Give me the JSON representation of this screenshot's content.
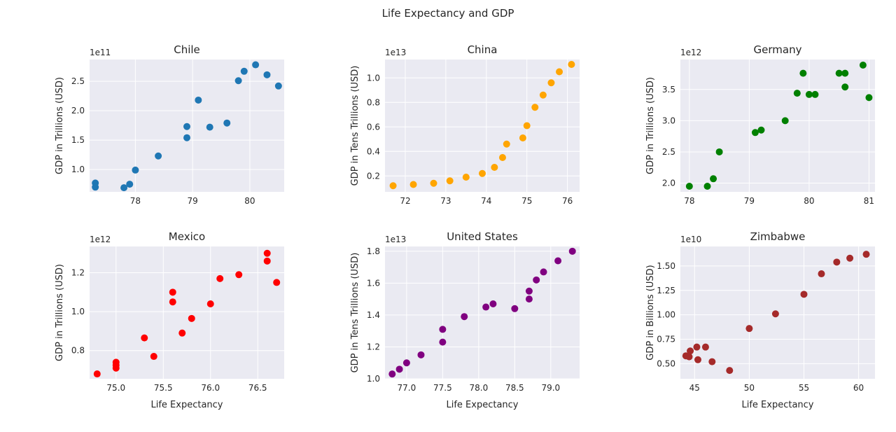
{
  "figure": {
    "suptitle": "Life Expectancy and GDP"
  },
  "chart_data": [
    {
      "type": "scatter",
      "title": "Chile",
      "xlabel": "",
      "ylabel": "GDP in Trillions (USD)",
      "offset_label": "1e11",
      "color": "#1f77b4",
      "xlim": [
        77.2,
        80.6
      ],
      "ylim": [
        0.62,
        2.87
      ],
      "xticks": [
        78,
        79,
        80
      ],
      "xtick_labels": [
        "78",
        "79",
        "80"
      ],
      "yticks": [
        1.0,
        1.5,
        2.0,
        2.5
      ],
      "ytick_labels": [
        "1.0",
        "1.5",
        "2.0",
        "2.5"
      ],
      "grid": true,
      "points": [
        {
          "x": 77.3,
          "y": 0.77
        },
        {
          "x": 77.3,
          "y": 0.7
        },
        {
          "x": 77.8,
          "y": 0.69
        },
        {
          "x": 77.9,
          "y": 0.75
        },
        {
          "x": 78.0,
          "y": 0.99
        },
        {
          "x": 78.4,
          "y": 1.23
        },
        {
          "x": 78.9,
          "y": 1.54
        },
        {
          "x": 78.9,
          "y": 1.73
        },
        {
          "x": 79.1,
          "y": 2.18
        },
        {
          "x": 79.3,
          "y": 1.72
        },
        {
          "x": 79.6,
          "y": 1.79
        },
        {
          "x": 79.8,
          "y": 2.51
        },
        {
          "x": 79.9,
          "y": 2.67
        },
        {
          "x": 80.1,
          "y": 2.78
        },
        {
          "x": 80.3,
          "y": 2.61
        },
        {
          "x": 80.5,
          "y": 2.42
        }
      ]
    },
    {
      "type": "scatter",
      "title": "China",
      "xlabel": "",
      "ylabel": "GDP in Tens Trillions (USD)",
      "offset_label": "1e13",
      "color": "#ffa500",
      "xlim": [
        71.5,
        76.3
      ],
      "ylim": [
        0.07,
        1.15
      ],
      "xticks": [
        72,
        73,
        74,
        75,
        76
      ],
      "xtick_labels": [
        "72",
        "73",
        "74",
        "75",
        "76"
      ],
      "yticks": [
        0.2,
        0.4,
        0.6,
        0.8,
        1.0
      ],
      "ytick_labels": [
        "0.2",
        "0.4",
        "0.6",
        "0.8",
        "1.0"
      ],
      "grid": true,
      "points": [
        {
          "x": 71.7,
          "y": 0.12
        },
        {
          "x": 72.2,
          "y": 0.13
        },
        {
          "x": 72.7,
          "y": 0.14
        },
        {
          "x": 73.1,
          "y": 0.16
        },
        {
          "x": 73.5,
          "y": 0.19
        },
        {
          "x": 73.9,
          "y": 0.22
        },
        {
          "x": 74.2,
          "y": 0.27
        },
        {
          "x": 74.4,
          "y": 0.35
        },
        {
          "x": 74.5,
          "y": 0.46
        },
        {
          "x": 74.9,
          "y": 0.51
        },
        {
          "x": 75.0,
          "y": 0.61
        },
        {
          "x": 75.2,
          "y": 0.76
        },
        {
          "x": 75.4,
          "y": 0.86
        },
        {
          "x": 75.6,
          "y": 0.96
        },
        {
          "x": 75.8,
          "y": 1.05
        },
        {
          "x": 76.1,
          "y": 1.11
        }
      ]
    },
    {
      "type": "scatter",
      "title": "Germany",
      "xlabel": "",
      "ylabel": "GDP in Trillions (USD)",
      "offset_label": "1e12",
      "color": "#008000",
      "xlim": [
        77.85,
        81.1
      ],
      "ylim": [
        1.86,
        3.98
      ],
      "xticks": [
        78,
        79,
        80,
        81
      ],
      "xtick_labels": [
        "78",
        "79",
        "80",
        "81"
      ],
      "yticks": [
        2.0,
        2.5,
        3.0,
        3.5
      ],
      "ytick_labels": [
        "2.0",
        "2.5",
        "3.0",
        "3.5"
      ],
      "grid": true,
      "points": [
        {
          "x": 78.0,
          "y": 1.95
        },
        {
          "x": 78.3,
          "y": 1.95
        },
        {
          "x": 78.4,
          "y": 2.07
        },
        {
          "x": 78.5,
          "y": 2.5
        },
        {
          "x": 79.1,
          "y": 2.81
        },
        {
          "x": 79.2,
          "y": 2.85
        },
        {
          "x": 79.6,
          "y": 3.0
        },
        {
          "x": 79.8,
          "y": 3.44
        },
        {
          "x": 79.9,
          "y": 3.76
        },
        {
          "x": 80.0,
          "y": 3.42
        },
        {
          "x": 80.1,
          "y": 3.42
        },
        {
          "x": 80.5,
          "y": 3.76
        },
        {
          "x": 80.6,
          "y": 3.76
        },
        {
          "x": 80.6,
          "y": 3.54
        },
        {
          "x": 80.9,
          "y": 3.89
        },
        {
          "x": 81.0,
          "y": 3.37
        }
      ]
    },
    {
      "type": "scatter",
      "title": "Mexico",
      "xlabel": "Life Expectancy",
      "ylabel": "GDP in Trillions (USD)",
      "offset_label": "1e12",
      "color": "#ff0000",
      "xlim": [
        74.72,
        76.78
      ],
      "ylim": [
        0.655,
        1.335
      ],
      "xticks": [
        75.0,
        75.5,
        76.0,
        76.5
      ],
      "xtick_labels": [
        "75.0",
        "75.5",
        "76.0",
        "76.5"
      ],
      "yticks": [
        0.8,
        1.0,
        1.2
      ],
      "ytick_labels": [
        "0.8",
        "1.0",
        "1.2"
      ],
      "grid": true,
      "points": [
        {
          "x": 74.8,
          "y": 0.68
        },
        {
          "x": 75.0,
          "y": 0.71
        },
        {
          "x": 75.0,
          "y": 0.725
        },
        {
          "x": 75.0,
          "y": 0.74
        },
        {
          "x": 75.3,
          "y": 0.865
        },
        {
          "x": 75.4,
          "y": 0.77
        },
        {
          "x": 75.6,
          "y": 1.05
        },
        {
          "x": 75.6,
          "y": 1.1
        },
        {
          "x": 75.7,
          "y": 0.89
        },
        {
          "x": 75.8,
          "y": 0.965
        },
        {
          "x": 76.0,
          "y": 1.04
        },
        {
          "x": 76.1,
          "y": 1.17
        },
        {
          "x": 76.3,
          "y": 1.19
        },
        {
          "x": 76.6,
          "y": 1.26
        },
        {
          "x": 76.6,
          "y": 1.3
        },
        {
          "x": 76.7,
          "y": 1.15
        }
      ]
    },
    {
      "type": "scatter",
      "title": "United States",
      "xlabel": "Life Expectancy",
      "ylabel": "GDP in Tens Trillions (USD)",
      "offset_label": "1e13",
      "color": "#800080",
      "xlim": [
        76.7,
        79.4
      ],
      "ylim": [
        1.0,
        1.83
      ],
      "xticks": [
        77.0,
        77.5,
        78.0,
        78.5,
        79.0
      ],
      "xtick_labels": [
        "77.0",
        "77.5",
        "78.0",
        "78.5",
        "79.0"
      ],
      "yticks": [
        1.0,
        1.2,
        1.4,
        1.6,
        1.8
      ],
      "ytick_labels": [
        "1.0",
        "1.2",
        "1.4",
        "1.6",
        "1.8"
      ],
      "grid": true,
      "points": [
        {
          "x": 76.8,
          "y": 1.03
        },
        {
          "x": 76.9,
          "y": 1.06
        },
        {
          "x": 77.0,
          "y": 1.1
        },
        {
          "x": 77.2,
          "y": 1.15
        },
        {
          "x": 77.5,
          "y": 1.23
        },
        {
          "x": 77.5,
          "y": 1.31
        },
        {
          "x": 77.8,
          "y": 1.39
        },
        {
          "x": 78.1,
          "y": 1.45
        },
        {
          "x": 78.2,
          "y": 1.47
        },
        {
          "x": 78.5,
          "y": 1.44
        },
        {
          "x": 78.7,
          "y": 1.5
        },
        {
          "x": 78.7,
          "y": 1.55
        },
        {
          "x": 78.8,
          "y": 1.62
        },
        {
          "x": 78.9,
          "y": 1.67
        },
        {
          "x": 79.1,
          "y": 1.74
        },
        {
          "x": 79.3,
          "y": 1.8
        }
      ]
    },
    {
      "type": "scatter",
      "title": "Zimbabwe",
      "xlabel": "Life Expectancy",
      "ylabel": "GDP in Billions (USD)",
      "offset_label": "1e10",
      "color": "#a52a2a",
      "xlim": [
        43.7,
        61.5
      ],
      "ylim": [
        0.345,
        1.7
      ],
      "xticks": [
        45,
        50,
        55,
        60
      ],
      "xtick_labels": [
        "45",
        "50",
        "55",
        "60"
      ],
      "yticks": [
        0.5,
        0.75,
        1.0,
        1.25,
        1.5
      ],
      "ytick_labels": [
        "0.50",
        "0.75",
        "1.00",
        "1.25",
        "1.50"
      ],
      "grid": true,
      "points": [
        {
          "x": 44.2,
          "y": 0.58
        },
        {
          "x": 44.5,
          "y": 0.57
        },
        {
          "x": 44.6,
          "y": 0.63
        },
        {
          "x": 45.2,
          "y": 0.67
        },
        {
          "x": 45.3,
          "y": 0.54
        },
        {
          "x": 46.0,
          "y": 0.67
        },
        {
          "x": 46.6,
          "y": 0.52
        },
        {
          "x": 48.2,
          "y": 0.43
        },
        {
          "x": 50.0,
          "y": 0.86
        },
        {
          "x": 52.4,
          "y": 1.01
        },
        {
          "x": 55.0,
          "y": 1.21
        },
        {
          "x": 56.6,
          "y": 1.42
        },
        {
          "x": 58.0,
          "y": 1.54
        },
        {
          "x": 59.2,
          "y": 1.58
        },
        {
          "x": 60.7,
          "y": 1.62
        }
      ]
    }
  ]
}
